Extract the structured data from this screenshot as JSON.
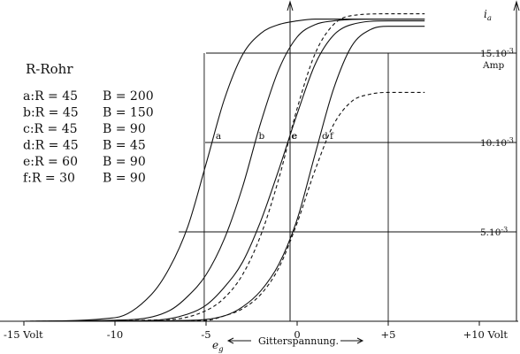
{
  "chart_data": {
    "type": "line",
    "title": "R-Rohr",
    "xlabel": "Gitterspannung.",
    "xsymbol": "e",
    "xsymbol_sub": "g",
    "ylabel": "i",
    "ylabel_sub": "a",
    "xlim": [
      -16,
      10
    ],
    "ylim": [
      0,
      17.5
    ],
    "x_ticks": [
      {
        "value": -15,
        "label": "-15 Volt"
      },
      {
        "value": -10,
        "label": "-10"
      },
      {
        "value": -5,
        "label": "-5"
      },
      {
        "value": 0,
        "label": "0"
      },
      {
        "value": 5,
        "label": "+5"
      },
      {
        "value": 10,
        "label": "+10 Volt"
      }
    ],
    "y_ticks": [
      {
        "value": 5,
        "label": "5.10",
        "exp": "-3"
      },
      {
        "value": 10,
        "label": "10.10",
        "exp": "-3"
      },
      {
        "value": 15,
        "label": "15.10",
        "exp": "-3",
        "unit": "Amp"
      }
    ],
    "legend": [
      {
        "key": "a",
        "R": "R = 45",
        "B": "B = 200"
      },
      {
        "key": "b",
        "R": "R = 45",
        "B": "B = 150"
      },
      {
        "key": "c",
        "R": "R = 45",
        "B": "B = 90"
      },
      {
        "key": "d",
        "R": "R = 45",
        "B": "B = 45"
      },
      {
        "key": "e",
        "R": "R = 60",
        "B": "B = 90"
      },
      {
        "key": "f",
        "R": "R = 30",
        "B": "B = 90"
      }
    ],
    "series": [
      {
        "name": "a",
        "style": "solid",
        "x": [
          -15,
          -10,
          -8,
          -7,
          -6,
          -5,
          -4,
          -3,
          -2,
          -1,
          0,
          1,
          3,
          5,
          7
        ],
        "y": [
          0,
          0.2,
          1.5,
          3,
          5.3,
          8.8,
          12.4,
          14.9,
          16.1,
          16.6,
          16.8,
          16.9,
          16.9,
          16.9,
          16.9
        ]
      },
      {
        "name": "b",
        "style": "solid",
        "x": [
          -15,
          -9,
          -7,
          -6,
          -5,
          -4,
          -3,
          -2,
          -1,
          0,
          1,
          2,
          4,
          7
        ],
        "y": [
          0,
          0.1,
          0.6,
          1.4,
          2.6,
          4.6,
          7.5,
          11.1,
          14.1,
          15.9,
          16.6,
          16.8,
          16.9,
          16.9
        ]
      },
      {
        "name": "c",
        "style": "solid",
        "x": [
          -15,
          -8,
          -6,
          -5,
          -4,
          -3,
          -2,
          -1,
          0,
          1,
          2,
          3,
          5,
          7
        ],
        "y": [
          0,
          0.05,
          0.4,
          0.9,
          1.9,
          3.3,
          5.6,
          8.5,
          11.6,
          14.4,
          16.0,
          16.6,
          16.8,
          16.8
        ]
      },
      {
        "name": "d",
        "style": "solid",
        "x": [
          -15,
          -6,
          -4,
          -3,
          -2,
          -1,
          0,
          1,
          2,
          3,
          4,
          5,
          7
        ],
        "y": [
          0,
          0.05,
          0.3,
          0.8,
          1.7,
          3.2,
          5.7,
          9.4,
          13.0,
          15.4,
          16.3,
          16.5,
          16.5
        ]
      },
      {
        "name": "e",
        "style": "dashed",
        "x": [
          -15,
          -7,
          -5,
          -4,
          -3,
          -2,
          -1,
          0,
          1,
          2,
          3,
          5,
          7
        ],
        "y": [
          0,
          0.1,
          0.6,
          1.3,
          2.6,
          4.8,
          8.0,
          11.9,
          15.0,
          16.6,
          17.1,
          17.2,
          17.2
        ]
      },
      {
        "name": "f",
        "style": "dashed",
        "x": [
          -15,
          -5,
          -4,
          -3,
          -2,
          -1,
          0,
          1,
          2,
          3,
          4,
          5,
          7
        ],
        "y": [
          0,
          0.05,
          0.3,
          0.7,
          1.5,
          3.0,
          5.5,
          8.5,
          11.0,
          12.3,
          12.7,
          12.8,
          12.8
        ]
      }
    ]
  }
}
